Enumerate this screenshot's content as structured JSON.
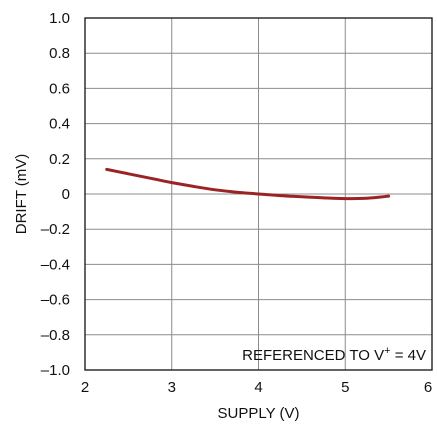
{
  "chart_data": {
    "type": "line",
    "xlabel": "SUPPLY (V)",
    "ylabel": "DRIFT (mV)",
    "xlim": [
      2,
      6
    ],
    "ylim": [
      -1.0,
      1.0
    ],
    "x_ticks": [
      "2",
      "3",
      "4",
      "5",
      "6"
    ],
    "y_ticks": [
      "1.0",
      "0.8",
      "0.6",
      "0.4",
      "0.2",
      "0",
      "–0.2",
      "–0.4",
      "–0.6",
      "–0.8",
      "–1.0"
    ],
    "grid": true,
    "annotation": {
      "prefix": "REFERENCED TO V",
      "superscript": "+",
      "suffix": " = 4V",
      "placement": "bottom-right"
    },
    "series": [
      {
        "color": "#9b2323",
        "x": [
          2.25,
          2.5,
          2.75,
          3.0,
          3.25,
          3.5,
          3.75,
          4.0,
          4.25,
          4.5,
          4.75,
          5.0,
          5.25,
          5.5
        ],
        "y": [
          0.14,
          0.115,
          0.09,
          0.065,
          0.043,
          0.024,
          0.01,
          0.0,
          -0.009,
          -0.016,
          -0.022,
          -0.026,
          -0.024,
          -0.012
        ]
      }
    ]
  }
}
